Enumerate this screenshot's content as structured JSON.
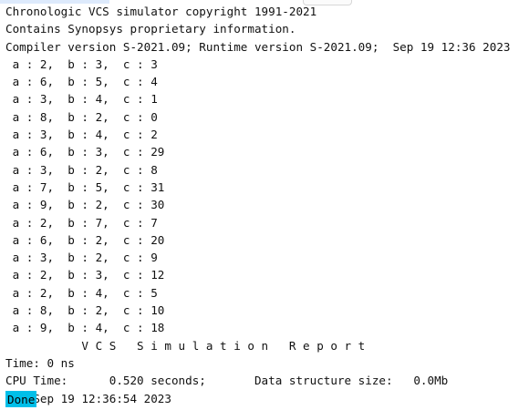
{
  "console": {
    "lines": [
      "Chronologic VCS simulator copyright 1991-2021",
      "Contains Synopsys proprietary information.",
      "Compiler version S-2021.09; Runtime version S-2021.09;  Sep 19 12:36 2023",
      " a : 2,  b : 3,  c : 3",
      " a : 6,  b : 5,  c : 4",
      " a : 3,  b : 4,  c : 1",
      " a : 8,  b : 2,  c : 0",
      " a : 3,  b : 4,  c : 2",
      " a : 6,  b : 3,  c : 29",
      " a : 3,  b : 2,  c : 8",
      " a : 7,  b : 5,  c : 31",
      " a : 9,  b : 2,  c : 30",
      " a : 2,  b : 7,  c : 7",
      " a : 6,  b : 2,  c : 20",
      " a : 3,  b : 2,  c : 9",
      " a : 2,  b : 3,  c : 12",
      " a : 2,  b : 4,  c : 5",
      " a : 8,  b : 2,  c : 10",
      " a : 9,  b : 4,  c : 18",
      "           V C S   S i m u l a t i o n   R e p o r t",
      "Time: 0 ns",
      "CPU Time:      0.520 seconds;       Data structure size:   0.0Mb",
      "Tue Sep 19 12:36:54 2023"
    ]
  },
  "status": {
    "done_label": "Done"
  }
}
